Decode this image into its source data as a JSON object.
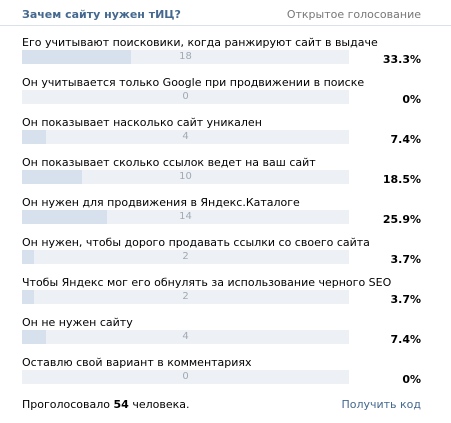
{
  "poll": {
    "title": "Зачем сайту нужен тИЦ?",
    "open_vote_label": "Открытое голосование",
    "options": [
      {
        "label": "Его учитывают поисковики, когда ранжируют сайт в выдаче",
        "count": "18",
        "percent": "33.3%",
        "fill": 0.333
      },
      {
        "label": "Он учитывается только Google при продвижении в поиске",
        "count": "0",
        "percent": "0%",
        "fill": 0
      },
      {
        "label": "Он показывает насколько сайт уникален",
        "count": "4",
        "percent": "7.4%",
        "fill": 0.074
      },
      {
        "label": "Он показывает сколько ссылок ведет на ваш сайт",
        "count": "10",
        "percent": "18.5%",
        "fill": 0.185
      },
      {
        "label": "Он нужен для продвижения в Яндекс.Каталоге",
        "count": "14",
        "percent": "25.9%",
        "fill": 0.259
      },
      {
        "label": "Он нужен, чтобы дорого продавать ссылки со своего сайта",
        "count": "2",
        "percent": "3.7%",
        "fill": 0.037
      },
      {
        "label": "Чтобы Яндекс мог его обнулять за использование черного SEO",
        "count": "2",
        "percent": "3.7%",
        "fill": 0.037
      },
      {
        "label": "Он не нужен сайту",
        "count": "4",
        "percent": "7.4%",
        "fill": 0.074
      },
      {
        "label": "Оставлю свой вариант в комментариях",
        "count": "0",
        "percent": "0%",
        "fill": 0
      }
    ],
    "footer": {
      "voted_prefix": "Проголосовало",
      "voted_count": "54",
      "voted_suffix": "человека.",
      "get_code_label": "Получить код"
    },
    "colors": {
      "title": "#45688e",
      "bar_track": "#edf1f5",
      "bar_fill": "#d6e1ed",
      "count_text": "#a0a9b3"
    }
  }
}
